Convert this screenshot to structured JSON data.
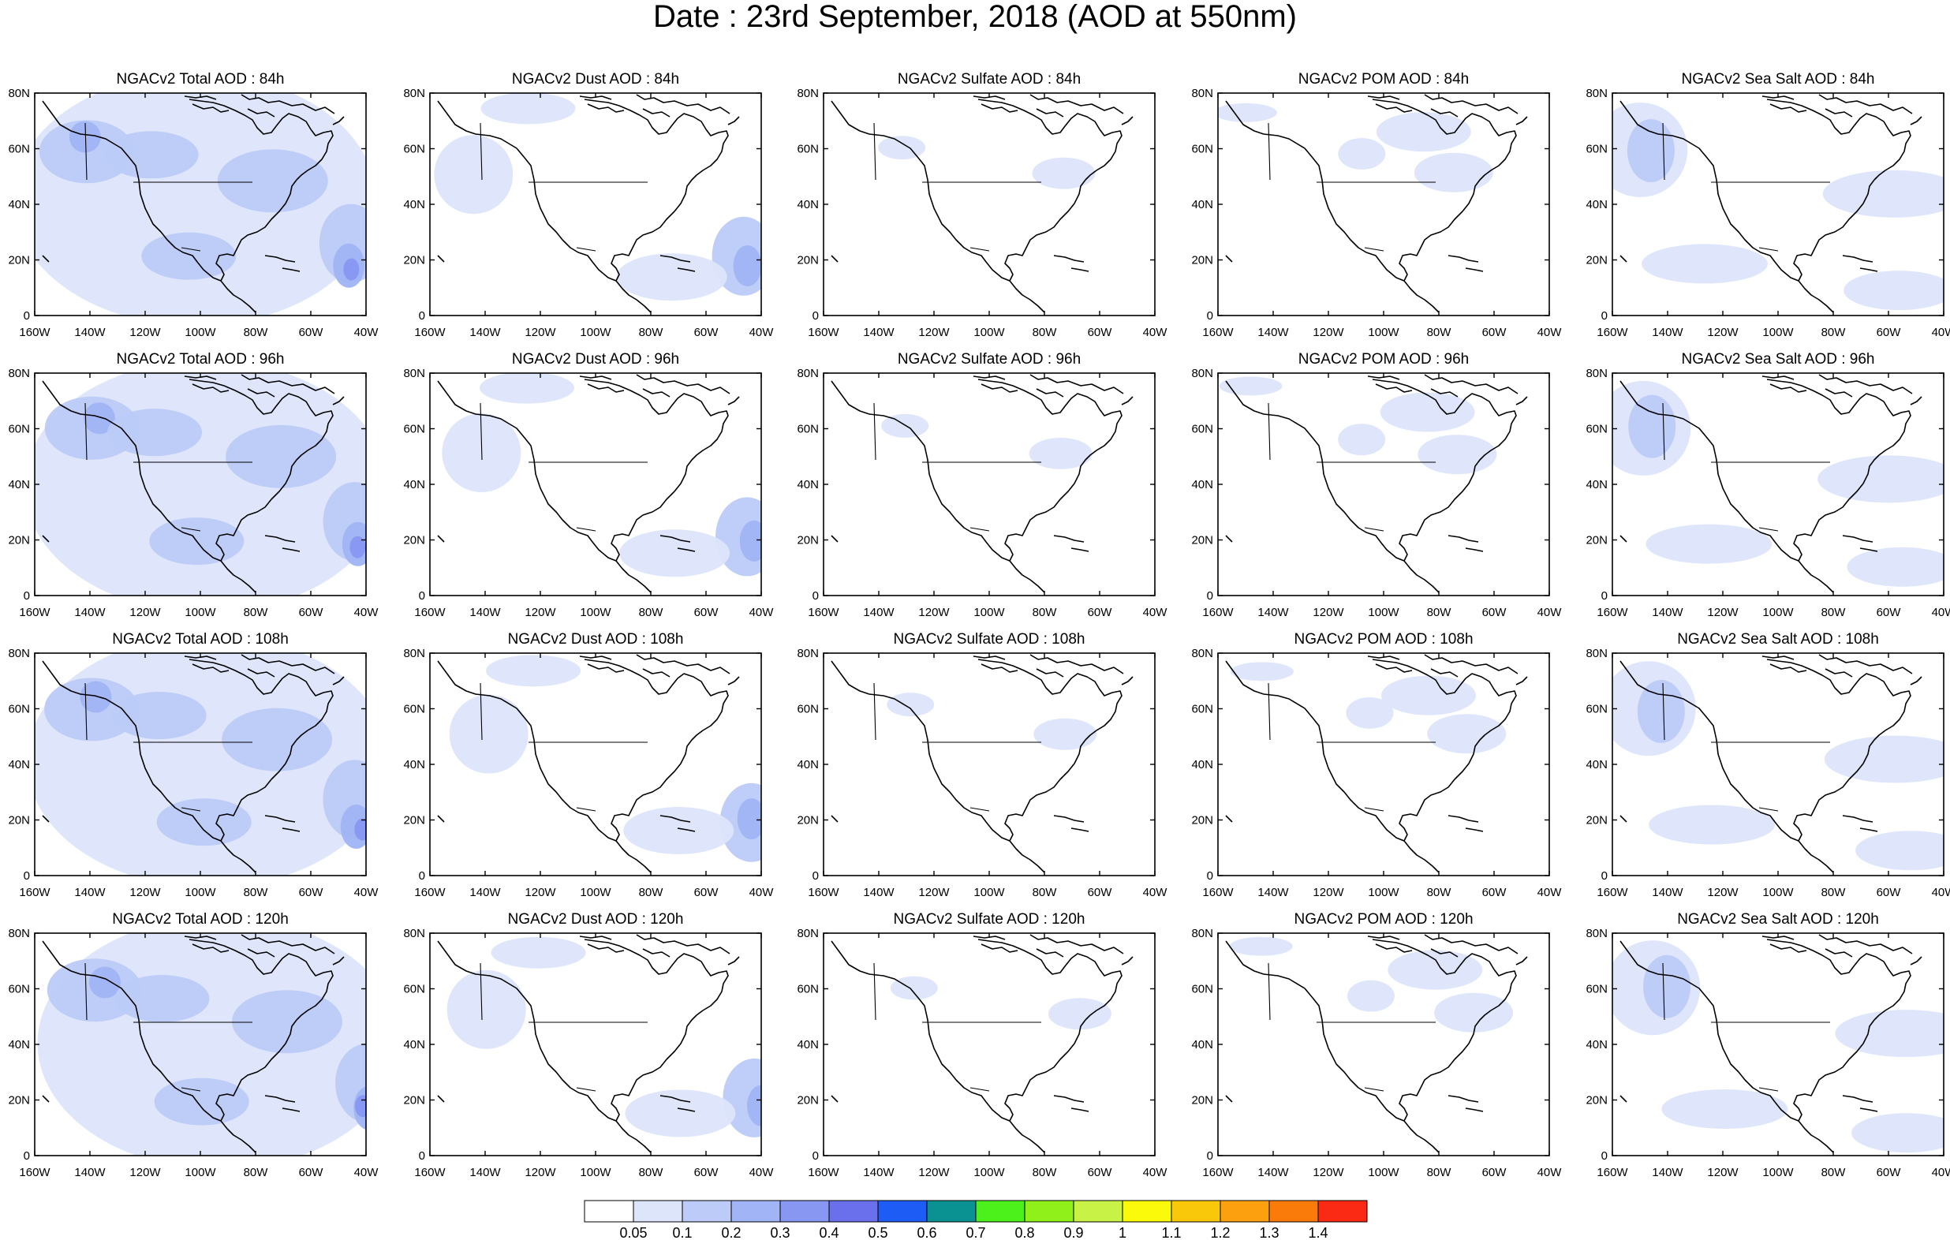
{
  "title": "Date : 23rd September, 2018 (AOD at 550nm)",
  "panels": [
    {
      "title": "NGACv2 Total AOD : 84h",
      "field": "total",
      "lead": 0
    },
    {
      "title": "NGACv2 Dust AOD : 84h",
      "field": "dust",
      "lead": 0
    },
    {
      "title": "NGACv2 Sulfate AOD : 84h",
      "field": "sulfate",
      "lead": 0
    },
    {
      "title": "NGACv2 POM AOD : 84h",
      "field": "pom",
      "lead": 0
    },
    {
      "title": "NGACv2 Sea Salt AOD : 84h",
      "field": "seasalt",
      "lead": 0
    },
    {
      "title": "NGACv2 Total AOD : 96h",
      "field": "total",
      "lead": 1
    },
    {
      "title": "NGACv2 Dust AOD : 96h",
      "field": "dust",
      "lead": 1
    },
    {
      "title": "NGACv2 Sulfate AOD : 96h",
      "field": "sulfate",
      "lead": 1
    },
    {
      "title": "NGACv2 POM AOD : 96h",
      "field": "pom",
      "lead": 1
    },
    {
      "title": "NGACv2 Sea Salt AOD : 96h",
      "field": "seasalt",
      "lead": 1
    },
    {
      "title": "NGACv2 Total AOD : 108h",
      "field": "total",
      "lead": 2
    },
    {
      "title": "NGACv2 Dust AOD : 108h",
      "field": "dust",
      "lead": 2
    },
    {
      "title": "NGACv2 Sulfate AOD : 108h",
      "field": "sulfate",
      "lead": 2
    },
    {
      "title": "NGACv2 POM AOD : 108h",
      "field": "pom",
      "lead": 2
    },
    {
      "title": "NGACv2 Sea Salt AOD : 108h",
      "field": "seasalt",
      "lead": 2
    },
    {
      "title": "NGACv2 Total AOD : 120h",
      "field": "total",
      "lead": 3
    },
    {
      "title": "NGACv2 Dust AOD : 120h",
      "field": "dust",
      "lead": 3
    },
    {
      "title": "NGACv2 Sulfate AOD : 120h",
      "field": "sulfate",
      "lead": 3
    },
    {
      "title": "NGACv2 POM AOD : 120h",
      "field": "pom",
      "lead": 3
    },
    {
      "title": "NGACv2 Sea Salt  AOD : 120h",
      "field": "seasalt",
      "lead": 3
    }
  ],
  "lat_ticks": [
    "0",
    "20N",
    "40N",
    "60N",
    "80N"
  ],
  "lon_ticks": [
    "160W",
    "140W",
    "120W",
    "100W",
    "80W",
    "60W",
    "40W"
  ],
  "colorbar": {
    "colors": [
      "#ffffff",
      "#dde5fb",
      "#bccbf8",
      "#a0b4f6",
      "#8898f2",
      "#6a70ec",
      "#1d5cf5",
      "#0a9191",
      "#4cf01a",
      "#8ff01a",
      "#c8f245",
      "#fafa0a",
      "#fac80a",
      "#fca010",
      "#fa7a0a",
      "#fa2a14"
    ],
    "labels": [
      "0.05",
      "0.1",
      "0.2",
      "0.3",
      "0.4",
      "0.5",
      "0.6",
      "0.7",
      "0.8",
      "0.9",
      "1",
      "1.1",
      "1.2",
      "1.3",
      "1.4"
    ]
  }
}
